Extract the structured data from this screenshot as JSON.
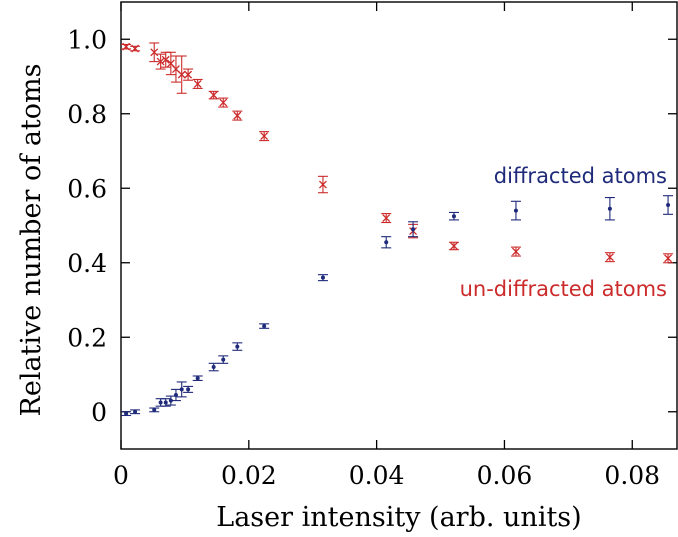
{
  "chart_data": {
    "type": "scatter",
    "title": "",
    "xlabel": "Laser intensity (arb. units)",
    "ylabel": "Relative number of atoms",
    "xlim": [
      0,
      0.087
    ],
    "ylim": [
      -0.1,
      1.1
    ],
    "xticks": [
      0,
      0.02,
      0.04,
      0.06,
      0.08
    ],
    "xtick_labels": [
      "0",
      "0.02",
      "0.04",
      "0.06",
      "0.08"
    ],
    "yticks": [
      0,
      0.2,
      0.4,
      0.6,
      0.8,
      1.0
    ],
    "ytick_labels": [
      "0",
      "0.2",
      "0.4",
      "0.6",
      "0.8",
      "1.0"
    ],
    "grid": false,
    "legend": "none",
    "series": [
      {
        "label": "un-diffracted atoms",
        "color": "#cc2b2b",
        "marker": "x",
        "label_position": "right",
        "points": [
          {
            "x": 0.0008,
            "y": 0.98,
            "err": 0.006
          },
          {
            "x": 0.0022,
            "y": 0.975,
            "err": 0.006
          },
          {
            "x": 0.0052,
            "y": 0.965,
            "err": 0.025
          },
          {
            "x": 0.0062,
            "y": 0.94,
            "err": 0.02
          },
          {
            "x": 0.007,
            "y": 0.945,
            "err": 0.02
          },
          {
            "x": 0.0078,
            "y": 0.935,
            "err": 0.03
          },
          {
            "x": 0.0086,
            "y": 0.92,
            "err": 0.035
          },
          {
            "x": 0.0095,
            "y": 0.905,
            "err": 0.05
          },
          {
            "x": 0.0105,
            "y": 0.905,
            "err": 0.015
          },
          {
            "x": 0.012,
            "y": 0.88,
            "err": 0.012
          },
          {
            "x": 0.0145,
            "y": 0.85,
            "err": 0.01
          },
          {
            "x": 0.016,
            "y": 0.83,
            "err": 0.012
          },
          {
            "x": 0.0182,
            "y": 0.795,
            "err": 0.012
          },
          {
            "x": 0.0224,
            "y": 0.74,
            "err": 0.012
          },
          {
            "x": 0.0316,
            "y": 0.61,
            "err": 0.022
          },
          {
            "x": 0.0415,
            "y": 0.52,
            "err": 0.012
          },
          {
            "x": 0.0457,
            "y": 0.485,
            "err": 0.018
          },
          {
            "x": 0.0521,
            "y": 0.445,
            "err": 0.01
          },
          {
            "x": 0.0618,
            "y": 0.43,
            "err": 0.012
          },
          {
            "x": 0.0765,
            "y": 0.415,
            "err": 0.012
          },
          {
            "x": 0.0856,
            "y": 0.412,
            "err": 0.012
          }
        ]
      },
      {
        "label": "diffracted atoms",
        "color": "#1f2a7a",
        "marker": "dot",
        "label_position": "right",
        "points": [
          {
            "x": 0.0008,
            "y": -0.005,
            "err": 0.005
          },
          {
            "x": 0.0022,
            "y": 0.0,
            "err": 0.005
          },
          {
            "x": 0.0052,
            "y": 0.005,
            "err": 0.005
          },
          {
            "x": 0.0062,
            "y": 0.025,
            "err": 0.01
          },
          {
            "x": 0.007,
            "y": 0.025,
            "err": 0.01
          },
          {
            "x": 0.0078,
            "y": 0.03,
            "err": 0.012
          },
          {
            "x": 0.0086,
            "y": 0.045,
            "err": 0.015
          },
          {
            "x": 0.0095,
            "y": 0.06,
            "err": 0.02
          },
          {
            "x": 0.0105,
            "y": 0.06,
            "err": 0.008
          },
          {
            "x": 0.012,
            "y": 0.09,
            "err": 0.006
          },
          {
            "x": 0.0145,
            "y": 0.12,
            "err": 0.01
          },
          {
            "x": 0.016,
            "y": 0.14,
            "err": 0.01
          },
          {
            "x": 0.0182,
            "y": 0.175,
            "err": 0.01
          },
          {
            "x": 0.0224,
            "y": 0.23,
            "err": 0.006
          },
          {
            "x": 0.0316,
            "y": 0.36,
            "err": 0.008
          },
          {
            "x": 0.0415,
            "y": 0.455,
            "err": 0.015
          },
          {
            "x": 0.0457,
            "y": 0.49,
            "err": 0.02
          },
          {
            "x": 0.0521,
            "y": 0.525,
            "err": 0.01
          },
          {
            "x": 0.0618,
            "y": 0.54,
            "err": 0.025
          },
          {
            "x": 0.0765,
            "y": 0.545,
            "err": 0.03
          },
          {
            "x": 0.0856,
            "y": 0.555,
            "err": 0.025
          }
        ]
      }
    ]
  }
}
